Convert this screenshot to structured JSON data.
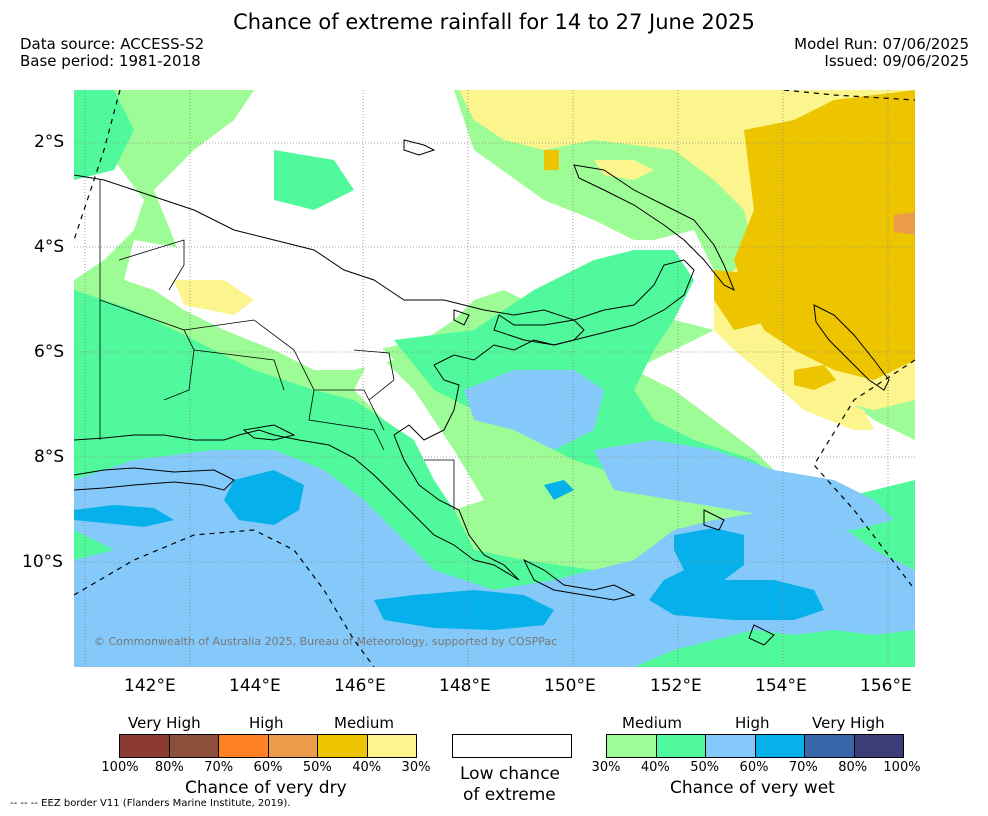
{
  "header": {
    "title": "Chance of extreme rainfall for 14 to 27 June 2025",
    "data_source": "Data source: ACCESS-S2",
    "base_period": "Base period: 1981-2018",
    "model_run": "Model Run: 07/06/2025",
    "issued": "Issued: 09/06/2025"
  },
  "map": {
    "x_ticks": [
      "142°E",
      "144°E",
      "146°E",
      "148°E",
      "150°E",
      "152°E",
      "154°E",
      "156°E"
    ],
    "y_ticks": [
      "2°S",
      "4°S",
      "6°S",
      "8°S",
      "10°S"
    ],
    "copyright": "© Commonwealth of Australia 2025, Bureau of Meteorology, supported by COSPPac",
    "colors": {
      "land_outline": "#000000",
      "gridline": "#888888",
      "eez": "#000000"
    }
  },
  "legend": {
    "dry": {
      "categories": [
        "Very High",
        "High",
        "Medium"
      ],
      "ticks": [
        "100%",
        "80%",
        "70%",
        "60%",
        "50%",
        "40%",
        "30%"
      ],
      "colors": [
        "#8b3a32",
        "#8b4f3c",
        "#ff8125",
        "#ec9b4a",
        "#ecc400",
        "#fcf48c"
      ],
      "title": "Chance of very dry"
    },
    "low": {
      "title_line1": "Low chance",
      "title_line2": "of extreme",
      "color": "#ffffff"
    },
    "wet": {
      "categories": [
        "Medium",
        "High",
        "Very High"
      ],
      "ticks": [
        "30%",
        "40%",
        "50%",
        "60%",
        "70%",
        "80%",
        "100%"
      ],
      "colors": [
        "#9efc96",
        "#50fa9c",
        "#85c9fa",
        "#06b0ea",
        "#3966a8",
        "#3c3c78"
      ],
      "title": "Chance of very wet"
    }
  },
  "footer": {
    "eez_note": "--  --  -- EEZ border V11 (Flanders Marine Institute, 2019)."
  }
}
